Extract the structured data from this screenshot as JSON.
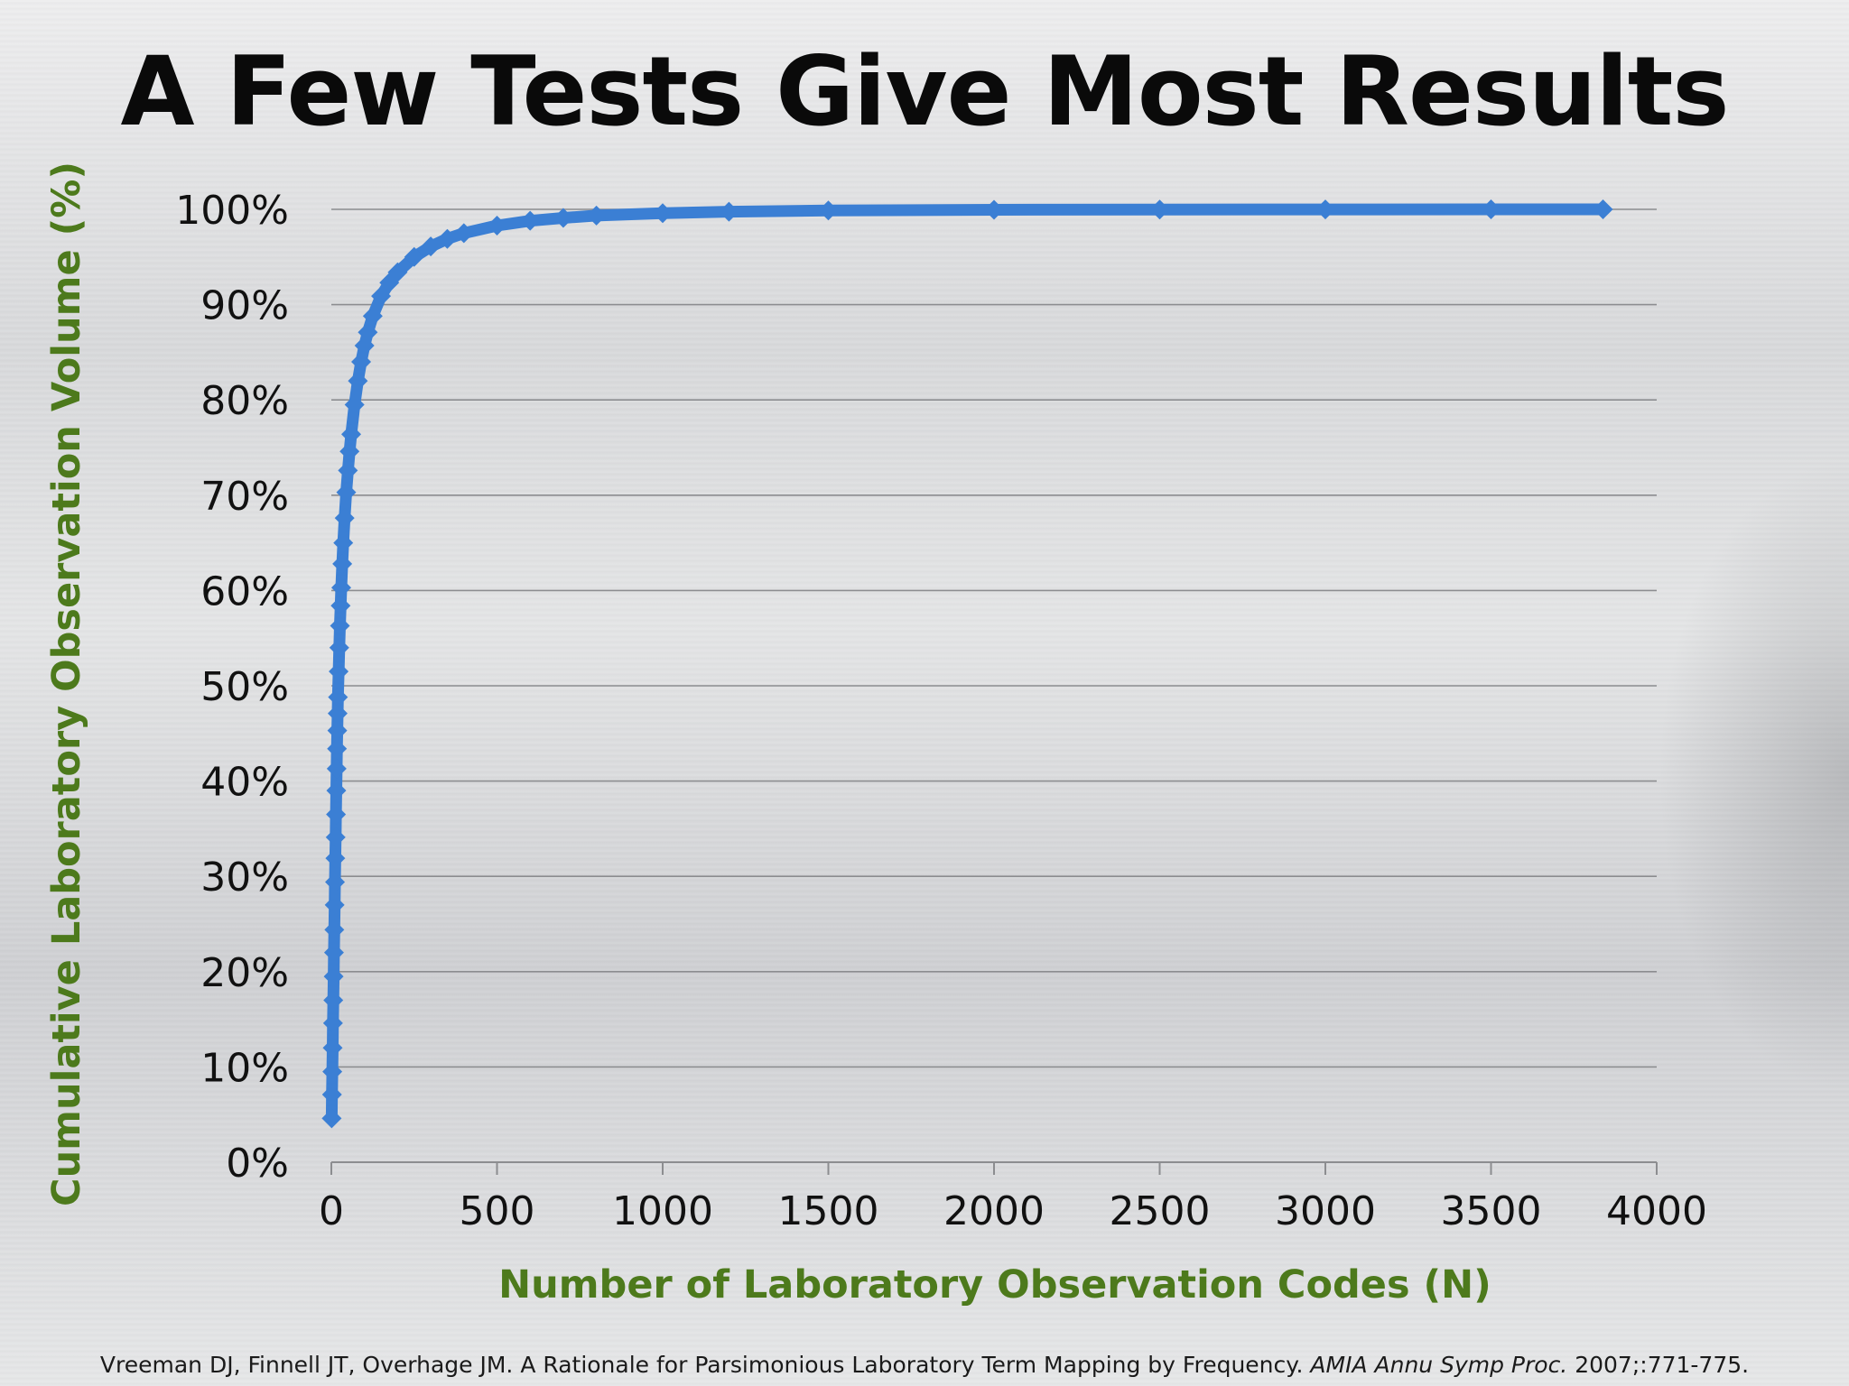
{
  "colors": {
    "series": "#3b7fd4",
    "axis_label": "#4d7a1c",
    "gridline": "#8c8d90"
  },
  "citation": {
    "authors_title": "Vreeman DJ, Finnell JT, Overhage JM. A Rationale for Parsimonious Laboratory Term Mapping by Frequency.",
    "journal": "AMIA Annu Symp Proc.",
    "details": "2007;:771-775."
  },
  "chart_data": {
    "type": "line",
    "title": "A Few Tests Give Most Results",
    "xlabel": "Number of Laboratory Observation Codes (N)",
    "ylabel": "Cumulative Laboratory Observation Volume (%)",
    "xlim": [
      0,
      4000
    ],
    "ylim": [
      0,
      100
    ],
    "x_ticks": [
      "0",
      "500",
      "1000",
      "1500",
      "2000",
      "2500",
      "3000",
      "3500",
      "4000"
    ],
    "y_ticks": [
      "0%",
      "10%",
      "20%",
      "30%",
      "40%",
      "50%",
      "60%",
      "70%",
      "80%",
      "90%",
      "100%"
    ],
    "grid": "horizontal",
    "marker": "diamond",
    "series": [
      {
        "x": [
          1,
          2,
          3,
          4,
          5,
          6,
          7,
          8,
          9,
          10,
          11,
          12,
          13,
          14,
          15,
          16,
          17,
          18,
          19,
          20,
          22,
          24,
          26,
          28,
          30,
          33,
          36,
          40,
          45,
          50,
          55,
          60,
          70,
          80,
          90,
          100,
          110,
          125,
          150,
          175,
          200,
          250,
          300,
          350,
          400,
          500,
          600,
          700,
          800,
          1000,
          1200,
          1500,
          2000,
          2500,
          3000,
          3500,
          3838
        ],
        "y": [
          4.6,
          7.1,
          9.5,
          12.0,
          14.6,
          17.0,
          19.5,
          22.0,
          24.4,
          27.0,
          29.4,
          31.9,
          34.1,
          36.5,
          39.0,
          41.3,
          43.4,
          45.3,
          47.1,
          48.8,
          51.5,
          54.0,
          56.3,
          58.4,
          60.3,
          62.8,
          65.0,
          67.6,
          70.3,
          72.6,
          74.6,
          76.4,
          79.5,
          82.0,
          84.0,
          85.7,
          87.1,
          88.8,
          90.9,
          92.3,
          93.4,
          95.0,
          96.1,
          96.9,
          97.5,
          98.3,
          98.8,
          99.1,
          99.35,
          99.6,
          99.75,
          99.88,
          99.95,
          99.98,
          99.99,
          100.0,
          100.0
        ]
      }
    ]
  }
}
